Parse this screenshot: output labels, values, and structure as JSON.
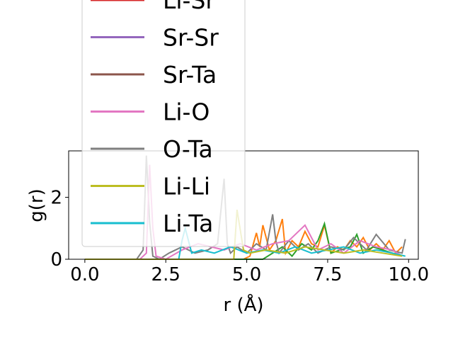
{
  "chart_data": {
    "type": "line",
    "xlabel": "r (Å)",
    "ylabel": "g(r)",
    "xlim": [
      -0.5,
      10.3
    ],
    "ylim": [
      0,
      3.5
    ],
    "xticks": [
      "0.0",
      "2.5",
      "5.0",
      "7.5",
      "10.0"
    ],
    "xtick_values": [
      0,
      2.5,
      5,
      7.5,
      10
    ],
    "yticks": [
      "0",
      "2"
    ],
    "ytick_values": [
      0,
      2
    ],
    "legend_placement": "upper-left, extending above the axes",
    "series": [
      {
        "name": "Li-Sr",
        "color": "#d62728"
      },
      {
        "name": "Sr-Sr",
        "color": "#9467bd"
      },
      {
        "name": "Sr-Ta",
        "color": "#8c564b"
      },
      {
        "name": "Li-O",
        "color": "#e377c2"
      },
      {
        "name": "O-Ta",
        "color": "#7f7f7f"
      },
      {
        "name": "Li-Li",
        "color": "#bcbd22"
      },
      {
        "name": "Li-Ta",
        "color": "#17becf"
      }
    ],
    "hidden_series": [
      {
        "color": "#ff7f0e",
        "x": [
          0,
          4.9,
          5.1,
          5.3,
          5.4,
          5.5,
          5.7,
          5.9,
          6.1,
          6.2,
          6.4,
          6.6,
          6.8,
          7.0,
          7.2,
          7.4,
          7.6,
          7.8,
          8.0,
          8.2,
          8.4,
          8.6,
          8.8,
          9.0,
          9.2,
          9.4,
          9.6,
          9.8
        ],
        "y": [
          0,
          0,
          0.1,
          0.85,
          0.4,
          1.1,
          0.3,
          0.6,
          1.3,
          0.2,
          0.6,
          0.4,
          0.9,
          0.5,
          0.4,
          1.1,
          0.2,
          0.4,
          0.3,
          0.6,
          0.4,
          0.7,
          0.3,
          0.5,
          0.3,
          0.6,
          0.2,
          0.4
        ]
      },
      {
        "color": "#2ca02c",
        "x": [
          0,
          5.5,
          5.8,
          6.1,
          6.4,
          6.7,
          7.0,
          7.2,
          7.4,
          7.6,
          7.9,
          8.2,
          8.4,
          8.6,
          8.9,
          9.2,
          9.5,
          9.8
        ],
        "y": [
          0,
          0,
          0.2,
          0.4,
          0.1,
          0.5,
          0.3,
          0.6,
          1.15,
          0.2,
          0.3,
          0.4,
          0.8,
          0.2,
          0.4,
          0.3,
          0.2,
          0.1
        ]
      },
      {
        "color": "#7f7f7f",
        "x": [
          0,
          1.6,
          1.8,
          1.9,
          2.0,
          2.1,
          2.3,
          2.6,
          3.0,
          3.4,
          3.8,
          4.1,
          4.3,
          4.4,
          4.5,
          4.7,
          5.0,
          5.3,
          5.6,
          5.8,
          5.9,
          6.0,
          6.3,
          6.6,
          6.9,
          7.2,
          7.6,
          8.0,
          8.3,
          8.7,
          9.0,
          9.4,
          9.8,
          9.9
        ],
        "y": [
          0,
          0,
          0.3,
          3.35,
          1.2,
          0.1,
          0,
          0.2,
          0.4,
          0.2,
          0.3,
          0.5,
          2.6,
          0.5,
          0.2,
          0.4,
          0.2,
          0.5,
          0.3,
          1.45,
          0.6,
          0.2,
          0.6,
          0.3,
          0.5,
          0.2,
          0.4,
          0.3,
          0.7,
          0.3,
          0.8,
          0.3,
          0.2,
          0.65
        ]
      },
      {
        "color": "#e377c2",
        "x": [
          0,
          1.7,
          1.9,
          2.0,
          2.1,
          2.2,
          2.5,
          3.0,
          3.5,
          3.9,
          4.3,
          4.8,
          5.3,
          5.8,
          6.3,
          6.8,
          7.2,
          7.6,
          8.0,
          8.5,
          9.0,
          9.5,
          9.8
        ],
        "y": [
          0,
          0,
          0.2,
          3.05,
          1.0,
          0.1,
          0,
          0.3,
          0.5,
          0.4,
          0.3,
          0.5,
          0.3,
          0.5,
          0.6,
          1.1,
          0.3,
          0.5,
          0.2,
          0.6,
          0.4,
          0.3,
          0.1
        ]
      },
      {
        "color": "#17becf",
        "x": [
          0,
          2.9,
          3.0,
          3.1,
          3.3,
          3.6,
          4.0,
          4.5,
          5.0,
          5.5,
          6.0,
          6.5,
          7.0,
          7.5,
          8.0,
          8.5,
          9.0,
          9.5,
          9.9
        ],
        "y": [
          0,
          0,
          0.6,
          1.0,
          0.2,
          0.3,
          0.2,
          0.4,
          0.2,
          0.3,
          0.2,
          0.4,
          0.2,
          0.3,
          0.4,
          0.2,
          0.3,
          0.2,
          0.1
        ]
      },
      {
        "color": "#bcbd22",
        "x": [
          0,
          4.6,
          4.7,
          4.9,
          5.1,
          5.6,
          6.2,
          6.8,
          7.4,
          8.0,
          8.6,
          9.2,
          9.8
        ],
        "y": [
          0,
          0,
          1.6,
          0.3,
          0.2,
          0.3,
          0.2,
          0.4,
          0.3,
          0.2,
          0.3,
          0.2,
          0.1
        ]
      }
    ]
  }
}
